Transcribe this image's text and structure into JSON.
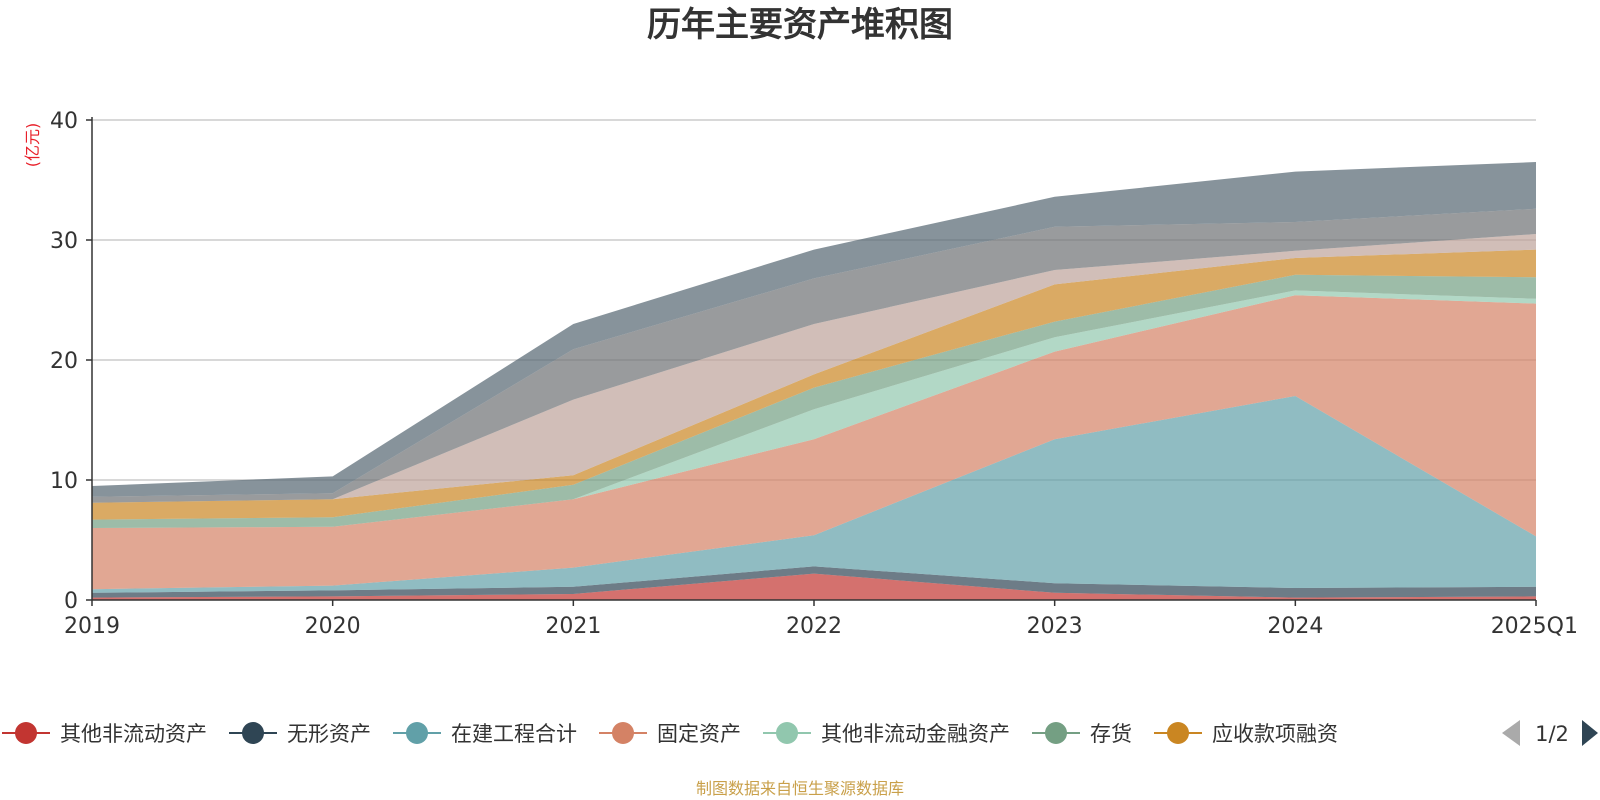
{
  "chart_data": {
    "type": "area",
    "stacked": true,
    "title": "历年主要资产堆积图",
    "unit_label": "(亿元)",
    "x": [
      "2019",
      "2020",
      "2021",
      "2022",
      "2023",
      "2024",
      "2025Q1"
    ],
    "ylim": [
      0,
      40
    ],
    "yticks": [
      0,
      10,
      20,
      30,
      40
    ],
    "grid": true,
    "legend_position": "bottom",
    "series": [
      {
        "name": "其他非流动资产",
        "color": "#c23531",
        "values": [
          0.2,
          0.3,
          0.5,
          2.2,
          0.6,
          0.2,
          0.3
        ]
      },
      {
        "name": "无形资产",
        "color": "#2f4554",
        "values": [
          0.4,
          0.5,
          0.6,
          0.6,
          0.8,
          0.8,
          0.8
        ]
      },
      {
        "name": "在建工程合计",
        "color": "#61a0a8",
        "values": [
          0.3,
          0.4,
          1.6,
          2.6,
          12.0,
          16.0,
          4.2
        ]
      },
      {
        "name": "固定资产",
        "color": "#d48265",
        "values": [
          5.1,
          4.9,
          5.7,
          8.0,
          7.3,
          8.4,
          19.4
        ]
      },
      {
        "name": "其他非流动金融资产",
        "color": "#91c7ae",
        "values": [
          0.0,
          0.0,
          0.0,
          2.5,
          1.2,
          0.4,
          0.4
        ]
      },
      {
        "name": "存货",
        "color": "#749f83",
        "values": [
          0.7,
          0.8,
          1.2,
          1.8,
          1.3,
          1.3,
          1.8
        ]
      },
      {
        "name": "应收款项融资",
        "color": "#ca8622",
        "values": [
          1.4,
          1.5,
          0.8,
          1.1,
          3.1,
          1.4,
          2.3
        ]
      },
      {
        "name": "",
        "color": "#bda29a",
        "values": [
          0.0,
          0.0,
          6.3,
          4.2,
          1.2,
          0.6,
          1.3
        ]
      },
      {
        "name": "",
        "color": "#6e7074",
        "values": [
          0.5,
          0.5,
          4.2,
          3.8,
          3.6,
          2.4,
          2.1
        ]
      },
      {
        "name": "",
        "color": "#546570",
        "values": [
          0.9,
          1.4,
          2.1,
          2.4,
          2.5,
          4.2,
          3.9
        ]
      }
    ]
  },
  "legend": {
    "page_indicator": "1/2",
    "prev_icon": "triangle-left-icon",
    "next_icon": "triangle-right-icon"
  },
  "source_text": "制图数据来自恒生聚源数据库"
}
